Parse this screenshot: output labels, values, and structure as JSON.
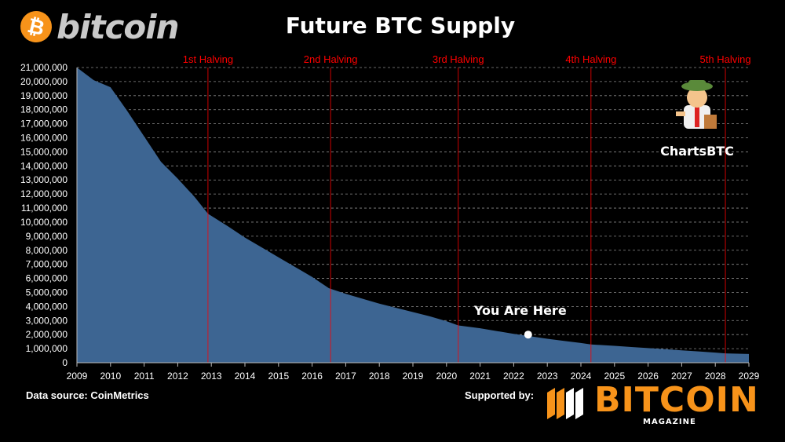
{
  "header": {
    "logo_symbol": "₿",
    "logo_text": "bitcoin",
    "title": "Future BTC Supply"
  },
  "footer": {
    "source": "Data source:  CoinMetrics",
    "supported_by": "Supported by:",
    "magazine_word": "BITCOIN",
    "magazine_sub": "MAGAZINE"
  },
  "badge": {
    "label": "ChartsBTC"
  },
  "chart_data": {
    "type": "area",
    "title": "Future BTC Supply",
    "xlim": [
      2009,
      2029
    ],
    "ylim": [
      0,
      21000000
    ],
    "x_ticks": [
      2009,
      2010,
      2011,
      2012,
      2013,
      2014,
      2015,
      2016,
      2017,
      2018,
      2019,
      2020,
      2021,
      2022,
      2023,
      2024,
      2025,
      2026,
      2027,
      2028,
      2029
    ],
    "y_ticks": [
      0,
      1000000,
      2000000,
      3000000,
      4000000,
      5000000,
      6000000,
      7000000,
      8000000,
      9000000,
      10000000,
      11000000,
      12000000,
      13000000,
      14000000,
      15000000,
      16000000,
      17000000,
      18000000,
      19000000,
      20000000,
      21000000
    ],
    "y_tick_labels": [
      "0",
      "1,000,000",
      "2,000,000",
      "3,000,000",
      "4,000,000",
      "5,000,000",
      "6,000,000",
      "7,000,000",
      "8,000,000",
      "9,000,000",
      "10,000,000",
      "11,000,000",
      "12,000,000",
      "13,000,000",
      "14,000,000",
      "15,000,000",
      "16,000,000",
      "17,000,000",
      "18,000,000",
      "19,000,000",
      "20,000,000",
      "21,000,000"
    ],
    "grid": true,
    "series": [
      {
        "x": [
          2009.0,
          2009.5,
          2010.0,
          2010.5,
          2011.0,
          2011.5,
          2012.0,
          2012.5,
          2012.9,
          2013.5,
          2014.0,
          2014.5,
          2015.0,
          2015.5,
          2016.0,
          2016.5,
          2017.0,
          2017.5,
          2018.0,
          2018.5,
          2019.0,
          2019.5,
          2020.0,
          2020.35,
          2021.0,
          2021.5,
          2022.0,
          2022.5,
          2023.0,
          2023.5,
          2024.0,
          2024.3,
          2025.0,
          2025.5,
          2026.0,
          2026.5,
          2027.0,
          2027.5,
          2028.0,
          2028.3,
          2029.0
        ],
        "y": [
          21000000,
          20100000,
          19600000,
          17900000,
          16100000,
          14300000,
          13100000,
          11800000,
          10600000,
          9700000,
          8900000,
          8200000,
          7500000,
          6800000,
          6100000,
          5300000,
          4900000,
          4550000,
          4200000,
          3900000,
          3600000,
          3300000,
          2950000,
          2650000,
          2450000,
          2250000,
          2050000,
          1880000,
          1700000,
          1550000,
          1400000,
          1300000,
          1200000,
          1120000,
          1040000,
          960000,
          880000,
          800000,
          720000,
          660000,
          620000
        ]
      }
    ],
    "color": "#3d6592",
    "halvings": [
      {
        "label": "1st Halving",
        "x": 2012.9
      },
      {
        "label": "2nd Halving",
        "x": 2016.55
      },
      {
        "label": "3rd Halving",
        "x": 2020.35
      },
      {
        "label": "4th Halving",
        "x": 2024.3
      },
      {
        "label": "5th Halving",
        "x": 2028.3
      }
    ],
    "halving_color": "#ff0000",
    "annotation": {
      "label": "You Are Here",
      "x": 2022.43,
      "y": 2000000
    }
  }
}
